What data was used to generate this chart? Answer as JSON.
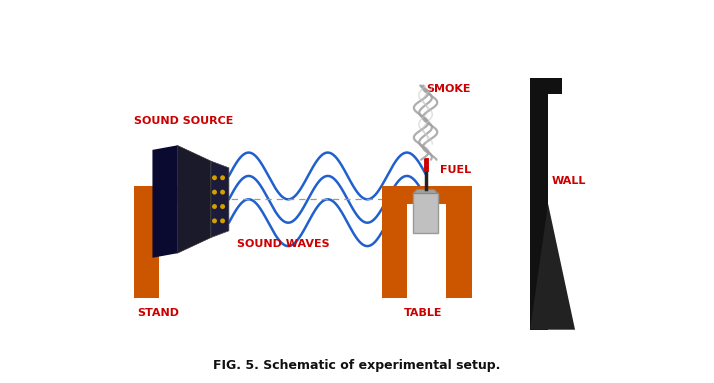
{
  "fig_width": 7.14,
  "fig_height": 3.83,
  "dpi": 100,
  "bg_color": "#ffffff",
  "orange_color": "#CC5500",
  "dark_color": "#1a1a1a",
  "blue_wave_color": "#2060CC",
  "red_color": "#CC0000",
  "gray_color": "#AAAAAA",
  "smoke_color": "#888888",
  "label_color": "#CC0000",
  "caption": "FIG. 5. Schematic of experimental setup.",
  "labels": {
    "sound_source": "SOUND SOURCE",
    "sound_waves": "SOUND WAVES",
    "smoke": "SMOKE",
    "fuel": "FUEL",
    "stand": "STAND",
    "table": "TABLE",
    "wall": "WALL"
  },
  "label_fontsize": 8,
  "caption_fontsize": 9
}
